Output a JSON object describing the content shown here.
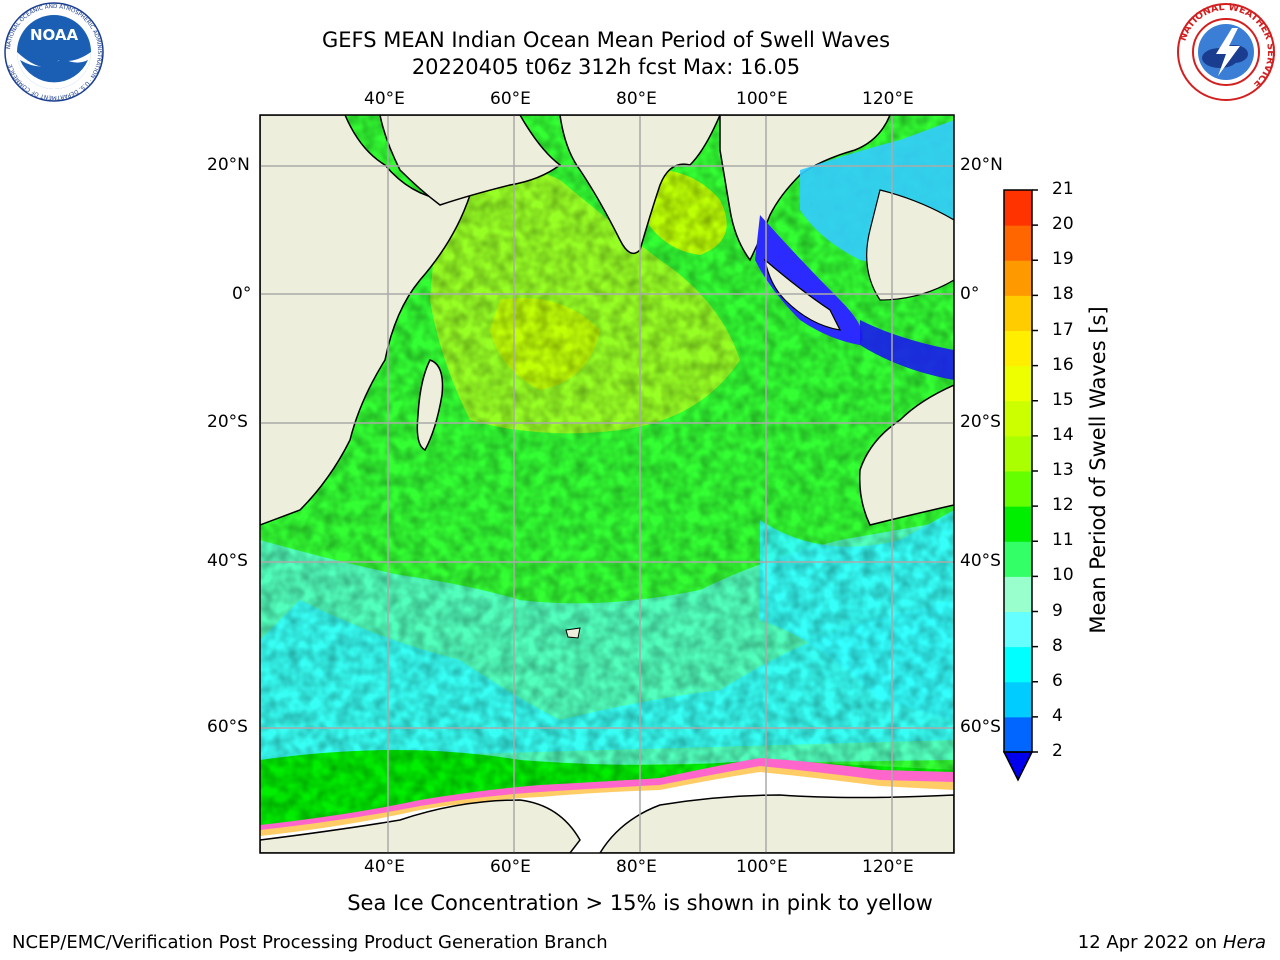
{
  "title": {
    "line1": "GEFS MEAN Indian Ocean Mean Period of Swell Waves",
    "line2": "20220405 t06z 312h fcst   Max: 16.05"
  },
  "map": {
    "lon_labels": [
      "40°E",
      "60°E",
      "80°E",
      "100°E",
      "120°E"
    ],
    "lat_labels": [
      "20°N",
      "0°",
      "20°S",
      "40°S",
      "60°S"
    ],
    "ocean_colors": {
      "main": "#33ff33",
      "cool": "#33ffff",
      "warm": "#ccff00",
      "land": "#eeeedd",
      "ice": "#ffffff",
      "ice_edge": "#ff66cc"
    }
  },
  "colorbar": {
    "title": "Mean Period of Swell Waves [s]",
    "levels": [
      "2",
      "4",
      "6",
      "8",
      "9",
      "10",
      "11",
      "12",
      "13",
      "14",
      "15",
      "16",
      "17",
      "18",
      "19",
      "20",
      "21"
    ],
    "colors": [
      "#0066ff",
      "#00ccff",
      "#00ffff",
      "#66ffff",
      "#99ffcc",
      "#33ff66",
      "#00ee00",
      "#66ff00",
      "#aaff00",
      "#ccff00",
      "#eeff00",
      "#ffee00",
      "#ffcc00",
      "#ff9900",
      "#ff6600",
      "#ff3300",
      "#ff0000"
    ],
    "extend_color": "#0000ee"
  },
  "caption": "Sea Ice Concentration > 15% is shown in pink to yellow",
  "footer": {
    "left": "NCEP/EMC/Verification Post Processing Product Generation Branch",
    "right_prefix": "12 Apr 2022 on ",
    "right_host": "Hera"
  },
  "logos": {
    "noaa_text": "NOAA",
    "noaa_ring": "NATIONAL OCEANIC AND ATMOSPHERIC ADMINISTRATION · U.S. DEPARTMENT OF COMMERCE",
    "nws_ring": "NATIONAL WEATHER SERVICE"
  }
}
